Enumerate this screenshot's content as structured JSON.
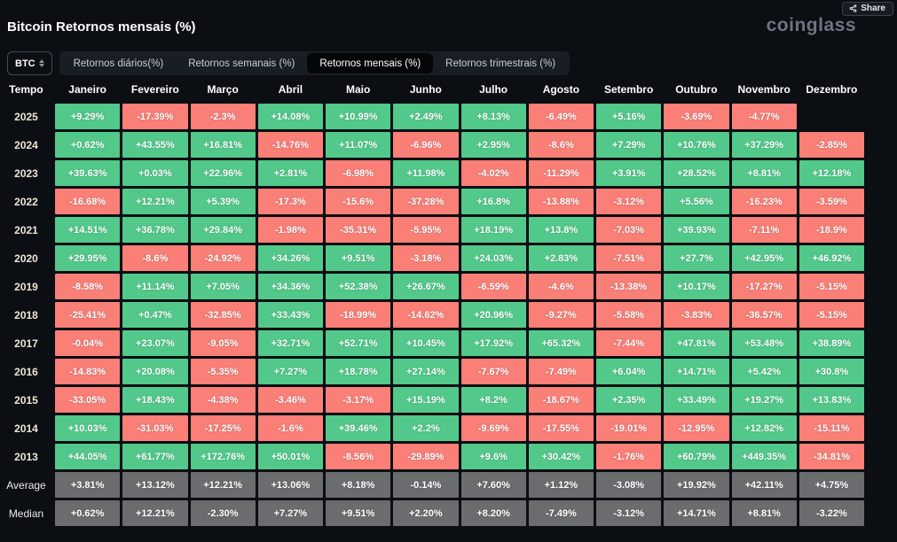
{
  "header": {
    "title": "Bitcoin Retornos mensais (%)",
    "logo": "coinglass",
    "share_label": "Share"
  },
  "controls": {
    "coin": "BTC",
    "tabs": [
      {
        "label": "Retornos diários(%)",
        "active": false
      },
      {
        "label": "Retornos semanais (%)",
        "active": false
      },
      {
        "label": "Retornos mensais (%)",
        "active": true
      },
      {
        "label": "Retornos trimestrais (%)",
        "active": false
      }
    ]
  },
  "colors": {
    "positive": "#52c98a",
    "negative": "#f97f77",
    "summary": "#6b6c6e",
    "background": "#0b0e13"
  },
  "table": {
    "time_header": "Tempo",
    "months": [
      "Janeiro",
      "Fevereiro",
      "Março",
      "Abril",
      "Maio",
      "Junho",
      "Julho",
      "Agosto",
      "Setembro",
      "Outubro",
      "Novembro",
      "Dezembro"
    ],
    "rows": [
      {
        "label": "2025",
        "summary": false,
        "values": [
          "+9.29%",
          "-17.39%",
          "-2.3%",
          "+14.08%",
          "+10.99%",
          "+2.49%",
          "+8.13%",
          "-6.49%",
          "+5.16%",
          "-3.69%",
          "-4.77%",
          null
        ]
      },
      {
        "label": "2024",
        "summary": false,
        "values": [
          "+0.62%",
          "+43.55%",
          "+16.81%",
          "-14.76%",
          "+11.07%",
          "-6.96%",
          "+2.95%",
          "-8.6%",
          "+7.29%",
          "+10.76%",
          "+37.29%",
          "-2.85%"
        ]
      },
      {
        "label": "2023",
        "summary": false,
        "values": [
          "+39.63%",
          "+0.03%",
          "+22.96%",
          "+2.81%",
          "-6.98%",
          "+11.98%",
          "-4.02%",
          "-11.29%",
          "+3.91%",
          "+28.52%",
          "+8.81%",
          "+12.18%"
        ]
      },
      {
        "label": "2022",
        "summary": false,
        "values": [
          "-16.68%",
          "+12.21%",
          "+5.39%",
          "-17.3%",
          "-15.6%",
          "-37.28%",
          "+16.8%",
          "-13.88%",
          "-3.12%",
          "+5.56%",
          "-16.23%",
          "-3.59%"
        ]
      },
      {
        "label": "2021",
        "summary": false,
        "values": [
          "+14.51%",
          "+36.78%",
          "+29.84%",
          "-1.98%",
          "-35.31%",
          "-5.95%",
          "+18.19%",
          "+13.8%",
          "-7.03%",
          "+39.93%",
          "-7.11%",
          "-18.9%"
        ]
      },
      {
        "label": "2020",
        "summary": false,
        "values": [
          "+29.95%",
          "-8.6%",
          "-24.92%",
          "+34.26%",
          "+9.51%",
          "-3.18%",
          "+24.03%",
          "+2.83%",
          "-7.51%",
          "+27.7%",
          "+42.95%",
          "+46.92%"
        ]
      },
      {
        "label": "2019",
        "summary": false,
        "values": [
          "-8.58%",
          "+11.14%",
          "+7.05%",
          "+34.36%",
          "+52.38%",
          "+26.67%",
          "-6.59%",
          "-4.6%",
          "-13.38%",
          "+10.17%",
          "-17.27%",
          "-5.15%"
        ]
      },
      {
        "label": "2018",
        "summary": false,
        "values": [
          "-25.41%",
          "+0.47%",
          "-32.85%",
          "+33.43%",
          "-18.99%",
          "-14.62%",
          "+20.96%",
          "-9.27%",
          "-5.58%",
          "-3.83%",
          "-36.57%",
          "-5.15%"
        ]
      },
      {
        "label": "2017",
        "summary": false,
        "values": [
          "-0.04%",
          "+23.07%",
          "-9.05%",
          "+32.71%",
          "+52.71%",
          "+10.45%",
          "+17.92%",
          "+65.32%",
          "-7.44%",
          "+47.81%",
          "+53.48%",
          "+38.89%"
        ]
      },
      {
        "label": "2016",
        "summary": false,
        "values": [
          "-14.83%",
          "+20.08%",
          "-5.35%",
          "+7.27%",
          "+18.78%",
          "+27.14%",
          "-7.67%",
          "-7.49%",
          "+6.04%",
          "+14.71%",
          "+5.42%",
          "+30.8%"
        ]
      },
      {
        "label": "2015",
        "summary": false,
        "values": [
          "-33.05%",
          "+18.43%",
          "-4.38%",
          "-3.46%",
          "-3.17%",
          "+15.19%",
          "+8.2%",
          "-18.67%",
          "+2.35%",
          "+33.49%",
          "+19.27%",
          "+13.83%"
        ]
      },
      {
        "label": "2014",
        "summary": false,
        "values": [
          "+10.03%",
          "-31.03%",
          "-17.25%",
          "-1.6%",
          "+39.46%",
          "+2.2%",
          "-9.69%",
          "-17.55%",
          "-19.01%",
          "-12.95%",
          "+12.82%",
          "-15.11%"
        ]
      },
      {
        "label": "2013",
        "summary": false,
        "values": [
          "+44.05%",
          "+61.77%",
          "+172.76%",
          "+50.01%",
          "-8.56%",
          "-29.89%",
          "+9.6%",
          "+30.42%",
          "-1.76%",
          "+60.79%",
          "+449.35%",
          "-34.81%"
        ]
      },
      {
        "label": "Average",
        "summary": true,
        "values": [
          "+3.81%",
          "+13.12%",
          "+12.21%",
          "+13.06%",
          "+8.18%",
          "-0.14%",
          "+7.60%",
          "+1.12%",
          "-3.08%",
          "+19.92%",
          "+42.11%",
          "+4.75%"
        ]
      },
      {
        "label": "Median",
        "summary": true,
        "values": [
          "+0.62%",
          "+12.21%",
          "-2.30%",
          "+7.27%",
          "+9.51%",
          "+2.20%",
          "+8.20%",
          "-7.49%",
          "-3.12%",
          "+14.71%",
          "+8.81%",
          "-3.22%"
        ]
      }
    ]
  }
}
